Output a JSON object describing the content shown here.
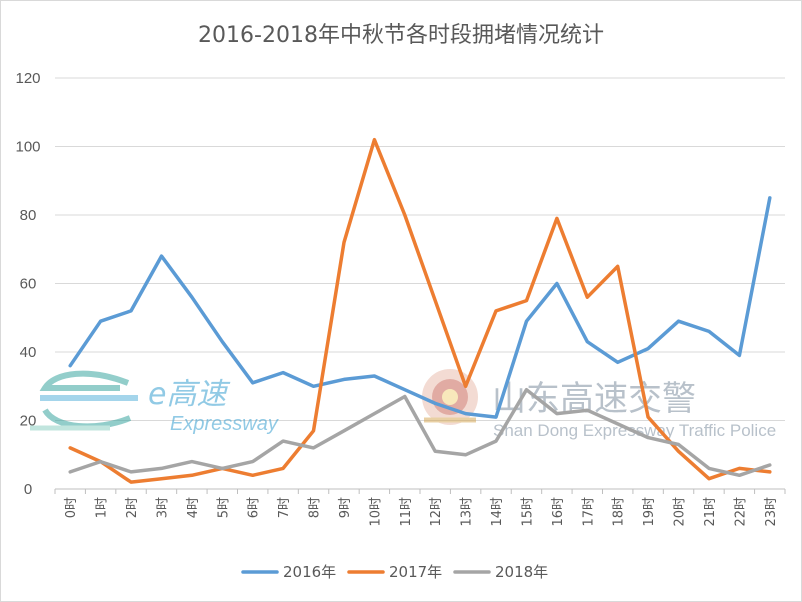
{
  "chart_data": {
    "type": "line",
    "title": "2016-2018年中秋节各时段拥堵情况统计",
    "xlabel": "",
    "ylabel": "",
    "ylim": [
      0,
      120
    ],
    "yticks": [
      0,
      20,
      40,
      60,
      80,
      100,
      120
    ],
    "grid": true,
    "legend_position": "bottom",
    "categories": [
      "0时",
      "1时",
      "2时",
      "3时",
      "4时",
      "5时",
      "6时",
      "7时",
      "8时",
      "9时",
      "10时",
      "11时",
      "12时",
      "13时",
      "14时",
      "15时",
      "16时",
      "17时",
      "18时",
      "19时",
      "20时",
      "21时",
      "22时",
      "23时"
    ],
    "series": [
      {
        "name": "2016年",
        "color": "#5b9bd5",
        "values": [
          36,
          49,
          52,
          68,
          56,
          43,
          31,
          34,
          30,
          32,
          33,
          29,
          25,
          22,
          21,
          49,
          60,
          43,
          37,
          41,
          49,
          46,
          39,
          85
        ]
      },
      {
        "name": "2017年",
        "color": "#ed7d31",
        "values": [
          12,
          8,
          2,
          3,
          4,
          6,
          4,
          6,
          17,
          72,
          102,
          80,
          55,
          30,
          52,
          55,
          79,
          56,
          65,
          21,
          11,
          3,
          6,
          5
        ]
      },
      {
        "name": "2018年",
        "color": "#a5a5a5",
        "values": [
          5,
          8,
          5,
          6,
          8,
          6,
          8,
          14,
          12,
          17,
          22,
          27,
          11,
          10,
          14,
          29,
          22,
          23,
          19,
          15,
          13,
          6,
          4,
          7
        ]
      }
    ]
  },
  "watermarks": {
    "expressway_cn": "e高速",
    "expressway_en": "Expressway",
    "police_cn": "山东高速交警",
    "police_en": "Shan Dong Expressway Traffic Police"
  }
}
